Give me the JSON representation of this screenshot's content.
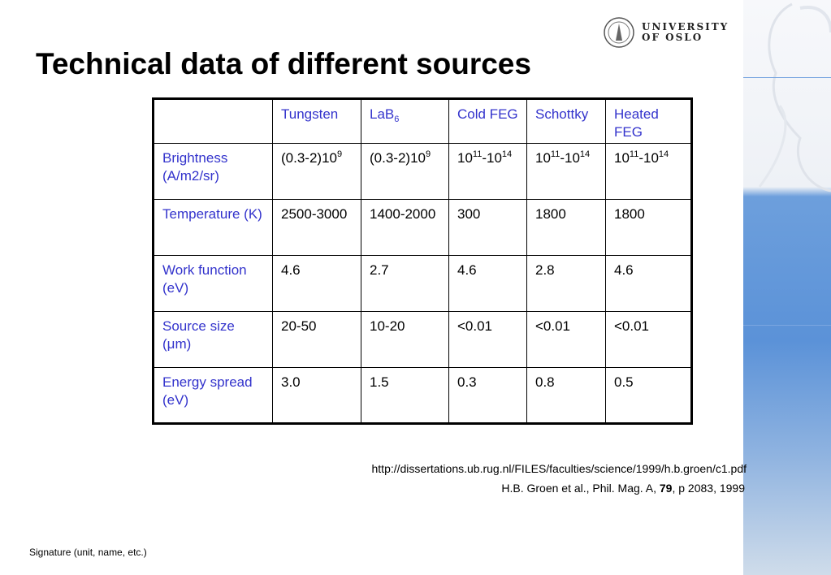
{
  "slide": {
    "title": "Technical data of different sources",
    "logo": {
      "line1": "UNIVERSITY",
      "line2": "OF OSLO"
    },
    "footer_signature": "Signature (unit, name, etc.)"
  },
  "table": {
    "columns": [
      [
        {
          "t": ""
        }
      ],
      [
        {
          "t": "Tungsten"
        }
      ],
      [
        {
          "t": "LaB"
        },
        {
          "t": "6",
          "type": "sub"
        }
      ],
      [
        {
          "t": "Cold FEG"
        }
      ],
      [
        {
          "t": "Schottky"
        }
      ],
      [
        {
          "t": "Heated FEG"
        }
      ]
    ],
    "rows": [
      {
        "label": "Brightness (A/m2/sr)",
        "cells": [
          [
            {
              "t": "(0.3-2)10"
            },
            {
              "t": "9",
              "type": "sup"
            }
          ],
          [
            {
              "t": "(0.3-2)10"
            },
            {
              "t": "9",
              "type": "sup"
            }
          ],
          [
            {
              "t": "10"
            },
            {
              "t": "11",
              "type": "sup"
            },
            {
              "t": "-10"
            },
            {
              "t": "14",
              "type": "sup"
            }
          ],
          [
            {
              "t": "10"
            },
            {
              "t": "11",
              "type": "sup"
            },
            {
              "t": "-10"
            },
            {
              "t": "14",
              "type": "sup"
            }
          ],
          [
            {
              "t": "10"
            },
            {
              "t": "11",
              "type": "sup"
            },
            {
              "t": "-10"
            },
            {
              "t": "14",
              "type": "sup"
            }
          ]
        ]
      },
      {
        "label": "Temperature (K)",
        "cells": [
          [
            {
              "t": "2500-3000"
            }
          ],
          [
            {
              "t": "1400-2000"
            }
          ],
          [
            {
              "t": "300"
            }
          ],
          [
            {
              "t": "1800"
            }
          ],
          [
            {
              "t": "1800"
            }
          ]
        ]
      },
      {
        "label": "Work function (eV)",
        "cells": [
          [
            {
              "t": "4.6"
            }
          ],
          [
            {
              "t": "2.7"
            }
          ],
          [
            {
              "t": "4.6"
            }
          ],
          [
            {
              "t": "2.8"
            }
          ],
          [
            {
              "t": "4.6"
            }
          ]
        ]
      },
      {
        "label": "Source size (μm)",
        "cells": [
          [
            {
              "t": "20-50"
            }
          ],
          [
            {
              "t": "10-20"
            }
          ],
          [
            {
              "t": "<0.01"
            }
          ],
          [
            {
              "t": "<0.01"
            }
          ],
          [
            {
              "t": "<0.01"
            }
          ]
        ]
      },
      {
        "label": "Energy spread (eV)",
        "cells": [
          [
            {
              "t": "3.0"
            }
          ],
          [
            {
              "t": "1.5"
            }
          ],
          [
            {
              "t": "0.3"
            }
          ],
          [
            {
              "t": "0.8"
            }
          ],
          [
            {
              "t": "0.5"
            }
          ]
        ]
      }
    ]
  },
  "references": {
    "url": "http://dissertations.ub.rug.nl/FILES/faculties/science/1999/h.b.groen/c1.pdf",
    "citation_prefix": "H.B. Groen et al., Phil. Mag. A, ",
    "citation_volume": "79",
    "citation_suffix": ", p 2083, 1999"
  },
  "colors": {
    "header_text": "#3333cc",
    "accent_blue": "#5b92d8"
  }
}
